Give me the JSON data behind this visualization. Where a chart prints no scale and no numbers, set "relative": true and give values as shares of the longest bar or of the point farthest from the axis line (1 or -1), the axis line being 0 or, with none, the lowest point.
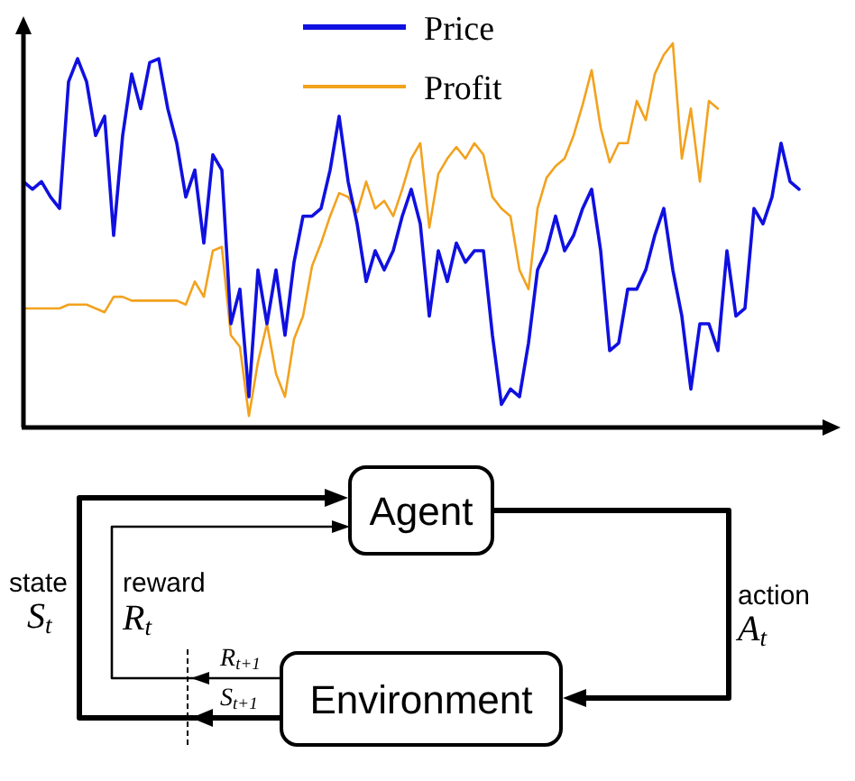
{
  "chart_data": [
    {
      "type": "line",
      "relative": true,
      "legend": "top",
      "categories": [
        null,
        null,
        null,
        null,
        null,
        null,
        null,
        null,
        null,
        null,
        null,
        null,
        null,
        null,
        null,
        null,
        null,
        null,
        null,
        null,
        null,
        null,
        null,
        null,
        null,
        null,
        null,
        null,
        null,
        null,
        null,
        null,
        null,
        null,
        null,
        null,
        null,
        null,
        null,
        null,
        null,
        null,
        null,
        null,
        null,
        null,
        null,
        null,
        null,
        null,
        null,
        null,
        null,
        null,
        null,
        null,
        null,
        null,
        null,
        null,
        null,
        null,
        null,
        null,
        null,
        null,
        null,
        null,
        null,
        null,
        null,
        null,
        null,
        null,
        null,
        null,
        null,
        null,
        null,
        null,
        null,
        null,
        null,
        null,
        null,
        null,
        null
      ],
      "series": [
        {
          "name": "Price",
          "color": "#1010e0",
          "values": [
            0.64,
            0.62,
            0.64,
            0.6,
            0.57,
            0.9,
            0.96,
            0.9,
            0.76,
            0.81,
            0.5,
            0.76,
            0.92,
            0.83,
            0.95,
            0.96,
            0.83,
            0.74,
            0.6,
            0.67,
            0.48,
            0.71,
            0.67,
            0.27,
            0.36,
            0.08,
            0.41,
            0.27,
            0.41,
            0.24,
            0.43,
            0.55,
            0.55,
            0.57,
            0.67,
            0.81,
            0.64,
            0.53,
            0.38,
            0.46,
            0.41,
            0.46,
            0.55,
            0.62,
            0.53,
            0.29,
            0.46,
            0.38,
            0.48,
            0.43,
            0.46,
            0.46,
            0.24,
            0.06,
            0.1,
            0.08,
            0.22,
            0.41,
            0.46,
            0.55,
            0.46,
            0.5,
            0.57,
            0.62,
            0.46,
            0.2,
            0.22,
            0.36,
            0.36,
            0.41,
            0.5,
            0.57,
            0.41,
            0.29,
            0.1,
            0.27,
            0.27,
            0.2,
            0.46,
            0.29,
            0.31,
            0.57,
            0.53,
            0.6,
            0.74,
            0.64,
            0.62
          ]
        },
        {
          "name": "Profit",
          "color": "#f2a21e",
          "values": [
            0.31,
            0.31,
            0.31,
            0.31,
            0.31,
            0.32,
            0.32,
            0.32,
            0.31,
            0.3,
            0.34,
            0.34,
            0.33,
            0.33,
            0.33,
            0.33,
            0.33,
            0.33,
            0.32,
            0.38,
            0.34,
            0.46,
            0.47,
            0.24,
            0.21,
            0.03,
            0.17,
            0.27,
            0.14,
            0.08,
            0.23,
            0.29,
            0.42,
            0.48,
            0.55,
            0.61,
            0.6,
            0.56,
            0.64,
            0.57,
            0.59,
            0.55,
            0.62,
            0.7,
            0.74,
            0.52,
            0.66,
            0.7,
            0.73,
            0.7,
            0.74,
            0.71,
            0.6,
            0.57,
            0.55,
            0.41,
            0.36,
            0.57,
            0.65,
            0.68,
            0.7,
            0.76,
            0.84,
            0.93,
            0.78,
            0.69,
            0.74,
            0.74,
            0.85,
            0.8,
            0.92,
            0.97,
            1.0,
            0.7,
            0.83,
            0.64,
            0.85,
            0.83,
            null,
            null,
            null,
            null,
            null,
            null,
            null,
            null,
            null
          ]
        }
      ]
    },
    {
      "type": "other",
      "categories": [
        "Agent",
        "Environment"
      ],
      "annotations": [
        "state",
        "S$_{t}$",
        "reward",
        "R$_{t}$",
        "action",
        "A$_{t}$",
        "R$_{t+1}$",
        "S$_{t+1}$"
      ]
    }
  ]
}
